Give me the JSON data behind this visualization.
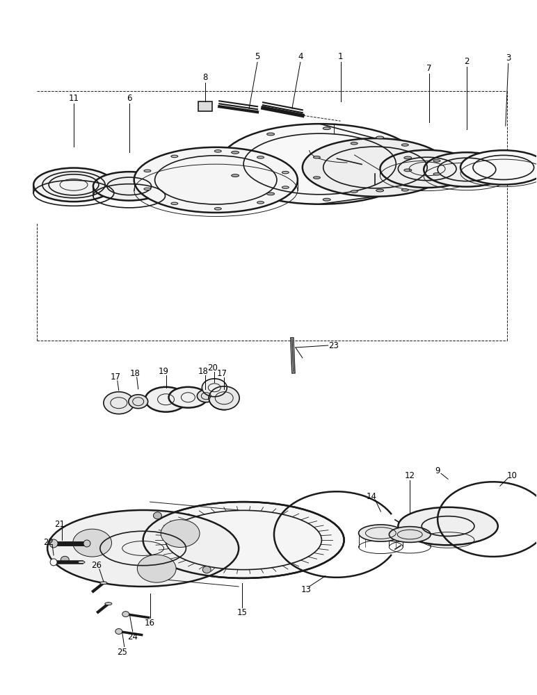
{
  "background_color": "#ffffff",
  "line_color": "#1a1a1a",
  "fig_width": 7.72,
  "fig_height": 10.0,
  "dpi": 100,
  "perspective_ratio": 0.38
}
